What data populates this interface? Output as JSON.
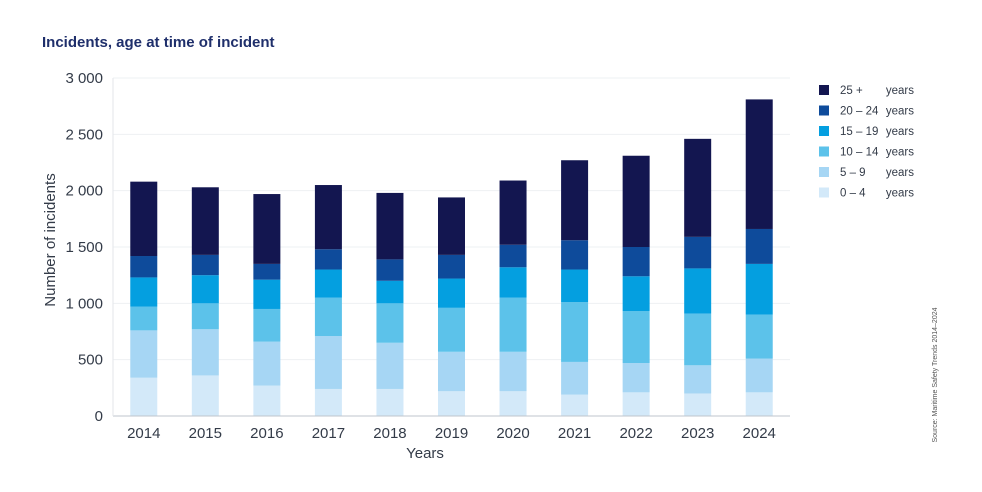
{
  "chart_data": {
    "type": "bar",
    "stacked": true,
    "title": "Incidents, age at time of incident",
    "xlabel": "Years",
    "ylabel": "Number of incidents",
    "ylim": [
      0,
      3000
    ],
    "yticks": [
      0,
      500,
      1000,
      1500,
      2000,
      2500,
      3000
    ],
    "ytick_labels": [
      "0",
      "500",
      "1 000",
      "1 500",
      "2 000",
      "2 500",
      "3 000"
    ],
    "categories": [
      "2014",
      "2015",
      "2016",
      "2017",
      "2018",
      "2019",
      "2020",
      "2021",
      "2022",
      "2023",
      "2024"
    ],
    "series": [
      {
        "name": "0 – 4",
        "unit": "years",
        "color": "#d3e9f9",
        "values": [
          340,
          360,
          270,
          240,
          240,
          220,
          220,
          190,
          210,
          200,
          210
        ]
      },
      {
        "name": "5 – 9",
        "unit": "years",
        "color": "#a6d6f4",
        "values": [
          420,
          410,
          390,
          470,
          410,
          350,
          350,
          290,
          260,
          250,
          300
        ]
      },
      {
        "name": "10 – 14",
        "unit": "years",
        "color": "#5cc2ea",
        "values": [
          210,
          230,
          290,
          340,
          350,
          390,
          480,
          530,
          460,
          460,
          390
        ]
      },
      {
        "name": "15 – 19",
        "unit": "years",
        "color": "#049fe0",
        "values": [
          260,
          250,
          260,
          250,
          200,
          260,
          270,
          290,
          310,
          400,
          450
        ]
      },
      {
        "name": "20 – 24",
        "unit": "years",
        "color": "#0e4b9b",
        "values": [
          190,
          180,
          140,
          180,
          190,
          210,
          200,
          260,
          260,
          280,
          310
        ]
      },
      {
        "name": "25 +",
        "unit": "years",
        "color": "#131650",
        "values": [
          660,
          600,
          620,
          570,
          590,
          510,
          570,
          710,
          810,
          870,
          1150
        ]
      }
    ],
    "legend_position": "right",
    "grid": true,
    "source": "Source: Maritime Safety Trends 2014–2024"
  }
}
